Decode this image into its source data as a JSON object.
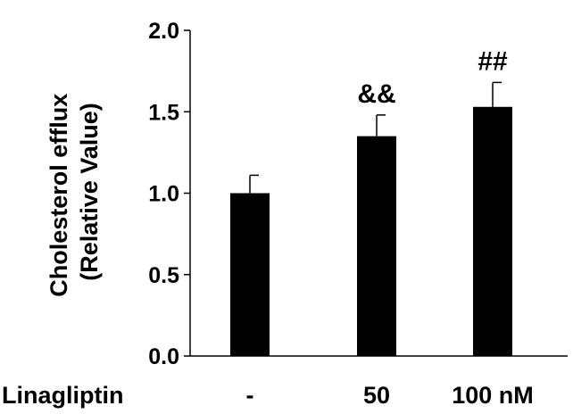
{
  "chart_data": {
    "type": "bar",
    "categories": [
      "-",
      "50",
      "100 nM"
    ],
    "values": [
      1.0,
      1.35,
      1.53
    ],
    "errors": [
      0.11,
      0.13,
      0.15
    ],
    "annotations": [
      "",
      "&&",
      "##"
    ],
    "row_label": "Linagliptin",
    "ylabel_lines": [
      "Cholesterol efflux",
      "(Relative Value)"
    ],
    "yticks": [
      "0.0",
      "0.5",
      "1.0",
      "1.5",
      "2.0"
    ],
    "ylim": [
      0,
      2.0
    ],
    "grid": false,
    "bar_color": "#000000"
  }
}
